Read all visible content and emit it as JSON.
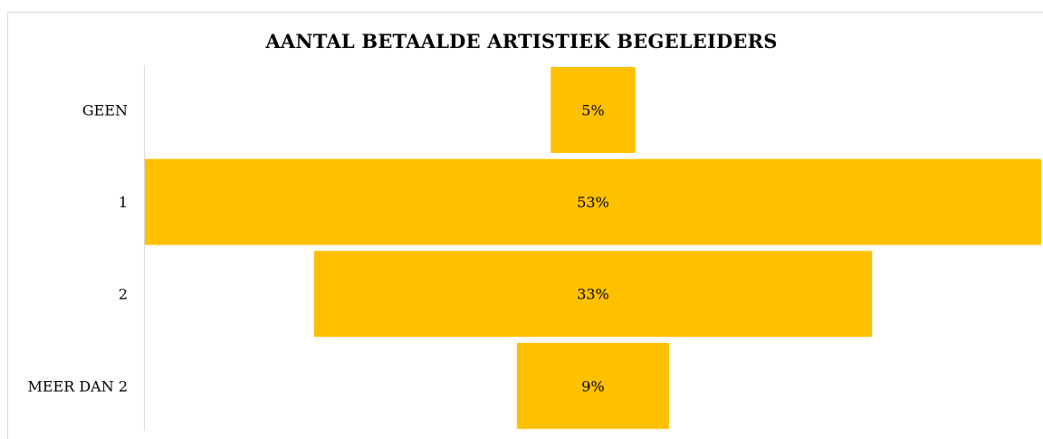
{
  "chart_data": {
    "type": "bar",
    "orientation": "horizontal",
    "layout": "funnel",
    "title": "AANTAL BETAALDE ARTISTIEK BEGELEIDERS",
    "categories": [
      "GEEN",
      "1",
      "2",
      "MEER DAN 2"
    ],
    "values": [
      5,
      53,
      33,
      9
    ],
    "value_labels": [
      "5%",
      "53%",
      "33%",
      "9%"
    ],
    "unit": "%",
    "bar_color": "#FFC000",
    "grid": false,
    "legend": "none"
  }
}
